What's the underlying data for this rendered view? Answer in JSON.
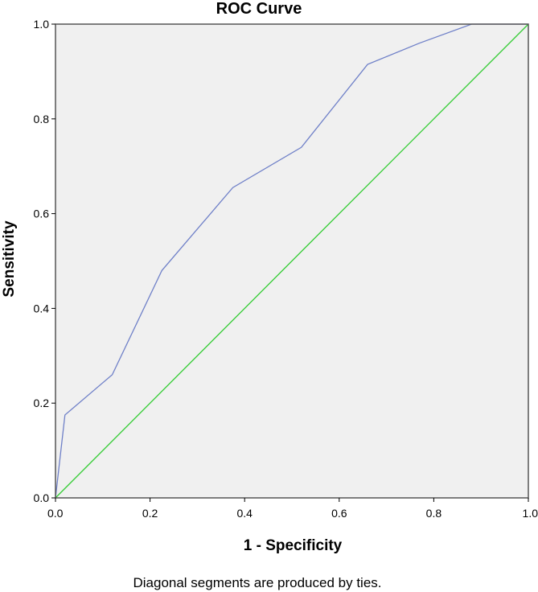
{
  "chart_data": {
    "type": "line",
    "title": "ROC Curve",
    "xlabel": "1 - Specificity",
    "ylabel": "Sensitivity",
    "xlim": [
      0,
      1
    ],
    "ylim": [
      0,
      1
    ],
    "xticks": [
      "0.0",
      "0.2",
      "0.4",
      "0.6",
      "0.8",
      "1.0"
    ],
    "yticks": [
      "0.0",
      "0.2",
      "0.4",
      "0.6",
      "0.8",
      "1.0"
    ],
    "grid": false,
    "footnote": "Diagonal segments are produced by ties.",
    "series": [
      {
        "color": "#6f80c8",
        "x": [
          0.0,
          0.02,
          0.12,
          0.225,
          0.375,
          0.52,
          0.66,
          0.77,
          0.88,
          1.0
        ],
        "y": [
          0.0,
          0.175,
          0.26,
          0.48,
          0.655,
          0.74,
          0.915,
          0.96,
          1.0,
          1.0
        ]
      },
      {
        "color": "#33cc33",
        "x": [
          0,
          1
        ],
        "y": [
          0,
          1
        ]
      }
    ],
    "plot_background": "#f0f0f0"
  }
}
